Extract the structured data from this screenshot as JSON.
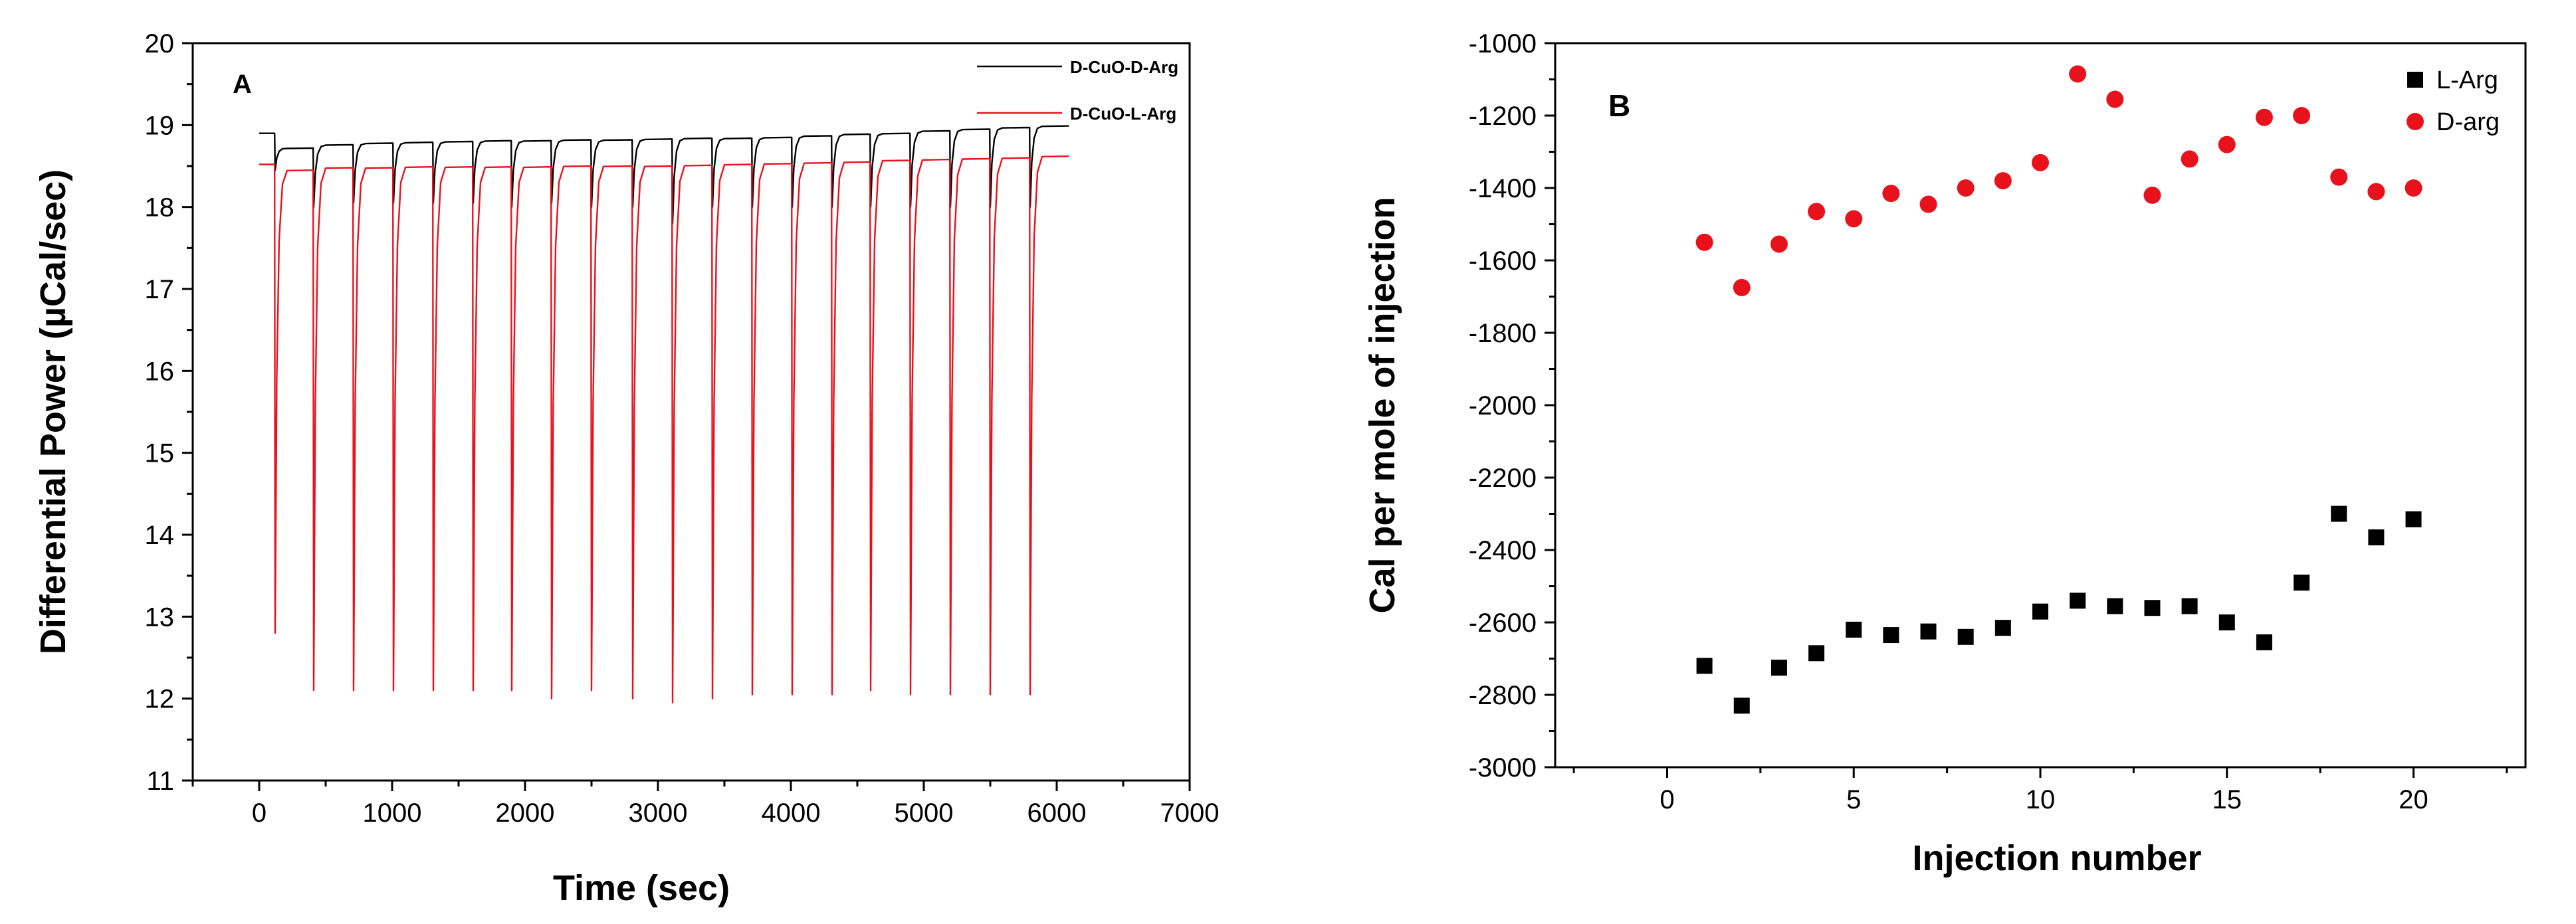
{
  "chart_data": [
    {
      "panel": "A",
      "type": "line",
      "xlabel": "Time (sec)",
      "ylabel": "Differential Power (µCal/sec)",
      "xlim": [
        -500,
        7000
      ],
      "ylim": [
        11,
        20
      ],
      "xticks": [
        0,
        1000,
        2000,
        3000,
        4000,
        5000,
        6000,
        7000
      ],
      "yticks": [
        11,
        12,
        13,
        14,
        15,
        16,
        17,
        18,
        19,
        20
      ],
      "legend_position": "top-right",
      "injection_times": [
        120,
        410,
        710,
        1010,
        1310,
        1610,
        1900,
        2200,
        2500,
        2810,
        3110,
        3410,
        3710,
        4010,
        4310,
        4600,
        4900,
        5200,
        5500,
        5800
      ],
      "series": [
        {
          "name": "D-CuO-D-Arg",
          "color": "#000000",
          "start": [
            0,
            18.9
          ],
          "end": 6100,
          "baseline": [
            18.72,
            18.76,
            18.78,
            18.79,
            18.8,
            18.81,
            18.81,
            18.82,
            18.82,
            18.83,
            18.84,
            18.84,
            18.85,
            18.87,
            18.89,
            18.9,
            18.93,
            18.95,
            18.97,
            18.99
          ],
          "spike_min": [
            18.45,
            18.0,
            18.05,
            18.05,
            18.05,
            18.05,
            18.0,
            18.05,
            18.0,
            18.0,
            17.8,
            18.0,
            18.0,
            18.0,
            18.0,
            18.0,
            18.0,
            18.0,
            18.0,
            18.0
          ]
        },
        {
          "name": "D-CuO-L-Arg",
          "color": "#e8121c",
          "start": [
            0,
            18.52
          ],
          "end": 6100,
          "baseline": [
            18.45,
            18.48,
            18.48,
            18.49,
            18.49,
            18.49,
            18.49,
            18.5,
            18.5,
            18.5,
            18.51,
            18.52,
            18.53,
            18.54,
            18.55,
            18.57,
            18.58,
            18.59,
            18.6,
            18.62
          ],
          "spike_min": [
            12.8,
            12.1,
            12.1,
            12.1,
            12.1,
            12.1,
            12.1,
            12.0,
            12.1,
            12.0,
            11.95,
            12.0,
            12.05,
            12.05,
            12.05,
            12.1,
            12.05,
            12.05,
            12.05,
            12.05
          ]
        }
      ]
    },
    {
      "panel": "B",
      "type": "scatter",
      "xlabel": "Injection number",
      "ylabel": "Cal per mole of injection",
      "xlim": [
        -3,
        23
      ],
      "ylim": [
        -3000,
        -1000
      ],
      "xticks": [
        0,
        5,
        10,
        15,
        20
      ],
      "yticks": [
        -3000,
        -2800,
        -2600,
        -2400,
        -2200,
        -2000,
        -1800,
        -1600,
        -1400,
        -1200,
        -1000
      ],
      "legend_position": "top-right",
      "x": [
        1,
        2,
        3,
        4,
        5,
        6,
        7,
        8,
        9,
        10,
        11,
        12,
        13,
        14,
        15,
        16,
        17,
        18,
        19,
        20
      ],
      "series": [
        {
          "name": "L-Arg",
          "marker": "square",
          "color": "#000000",
          "values": [
            -2720,
            -2830,
            -2725,
            -2685,
            -2620,
            -2635,
            -2625,
            -2640,
            -2615,
            -2570,
            -2540,
            -2555,
            -2560,
            -2555,
            -2600,
            -2655,
            -2490,
            -2300,
            -2365,
            -2315
          ]
        },
        {
          "name": "D-arg",
          "marker": "circle",
          "color": "#e8121c",
          "values": [
            -1550,
            -1675,
            -1555,
            -1465,
            -1485,
            -1415,
            -1445,
            -1400,
            -1380,
            -1330,
            -1085,
            -1155,
            -1420,
            -1320,
            -1280,
            -1205,
            -1200,
            -1370,
            -1410,
            -1400
          ]
        }
      ]
    }
  ],
  "panels": {
    "a": {
      "label": "A"
    },
    "b": {
      "label": "B"
    }
  }
}
